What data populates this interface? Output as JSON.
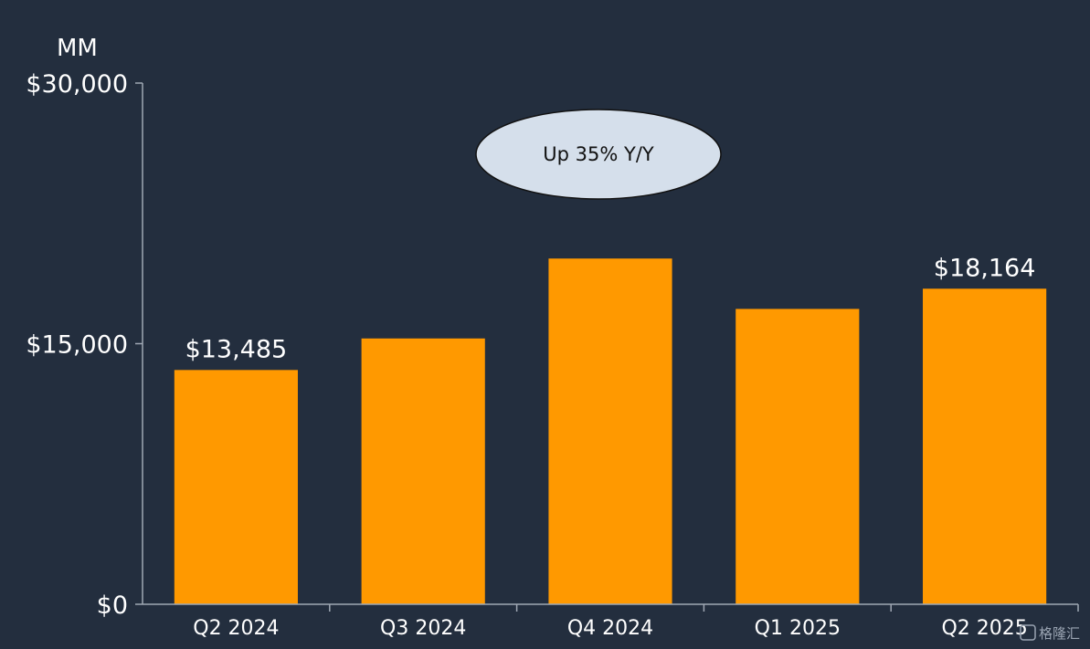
{
  "chart_data": {
    "type": "bar",
    "unit_label": "MM",
    "categories": [
      "Q2 2024",
      "Q3 2024",
      "Q4 2024",
      "Q1 2025",
      "Q2 2025"
    ],
    "values": [
      13485,
      15300,
      19900,
      17000,
      18164
    ],
    "data_labels": [
      "$13,485",
      "",
      "",
      "",
      "$18,164"
    ],
    "ylim": [
      0,
      30000
    ],
    "yticks": [
      {
        "value": 0,
        "label": "$0"
      },
      {
        "value": 15000,
        "label": "$15,000"
      },
      {
        "value": 30000,
        "label": "$30,000"
      }
    ],
    "grid": false,
    "legend": "none",
    "annotation": "Up 35% Y/Y",
    "colors": {
      "background": "#232e3e",
      "bar": "#ff9900",
      "axis": "#a0a8b4",
      "callout_fill": "#d5dfeb",
      "callout_stroke": "#111111"
    }
  },
  "watermark": "格隆汇"
}
